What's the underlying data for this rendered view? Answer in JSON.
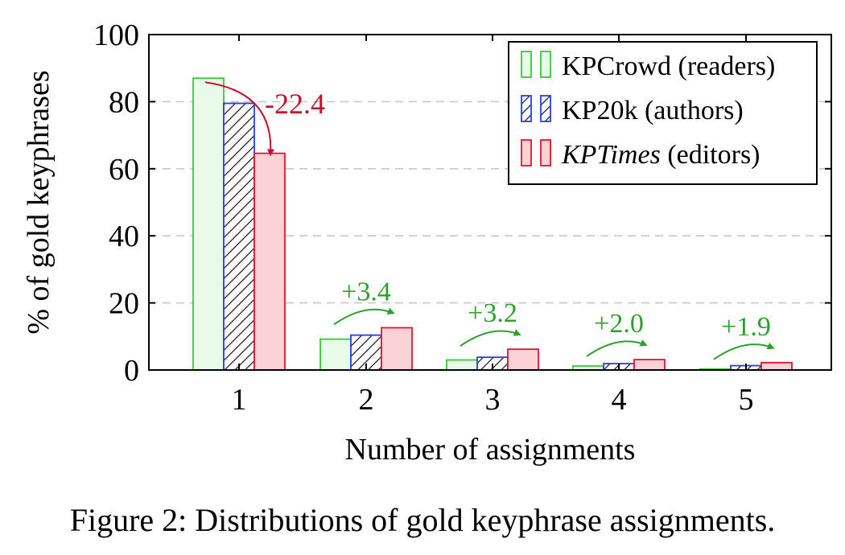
{
  "chart_data": {
    "type": "bar",
    "xlabel": "Number of assignments",
    "ylabel": "% of gold keyphrases",
    "ylim": [
      0,
      100
    ],
    "yticks": [
      0,
      20,
      40,
      60,
      80,
      100
    ],
    "categories": [
      "1",
      "2",
      "3",
      "4",
      "5"
    ],
    "grid": "horizontal dashed",
    "legend_position": "top-right",
    "series": [
      {
        "name": "KPCrowd (readers)",
        "values": [
          87.0,
          9.2,
          3.0,
          1.2,
          0.3
        ],
        "color": "#33cc33",
        "fill": "#e8fbe8",
        "hatch": false
      },
      {
        "name": "KP20k (authors)",
        "values": [
          79.5,
          10.4,
          3.8,
          1.9,
          1.3
        ],
        "color": "#2a3ee6",
        "fill": "#ffffff",
        "hatch": true
      },
      {
        "name": "KPTimes (editors)",
        "values": [
          64.6,
          12.6,
          6.2,
          3.1,
          2.2
        ],
        "color": "#e8112d",
        "fill": "#fbd3d6",
        "hatch": false
      }
    ],
    "legend": [
      {
        "name": "KPCrowd",
        "detail": " (readers)",
        "italic": false
      },
      {
        "name": "KP20k",
        "detail": " (authors)",
        "italic": false
      },
      {
        "name": "KPTimes",
        "detail": " (editors)",
        "italic": true
      }
    ],
    "annotations": [
      {
        "category": "1",
        "text": "-22.4",
        "color": "#c8102e"
      },
      {
        "category": "2",
        "text": "+3.4",
        "color": "#2ca02c"
      },
      {
        "category": "3",
        "text": "+3.2",
        "color": "#2ca02c"
      },
      {
        "category": "4",
        "text": "+2.0",
        "color": "#2ca02c"
      },
      {
        "category": "5",
        "text": "+1.9",
        "color": "#2ca02c"
      }
    ]
  },
  "caption": "Figure 2: Distributions of gold keyphrase assignments."
}
